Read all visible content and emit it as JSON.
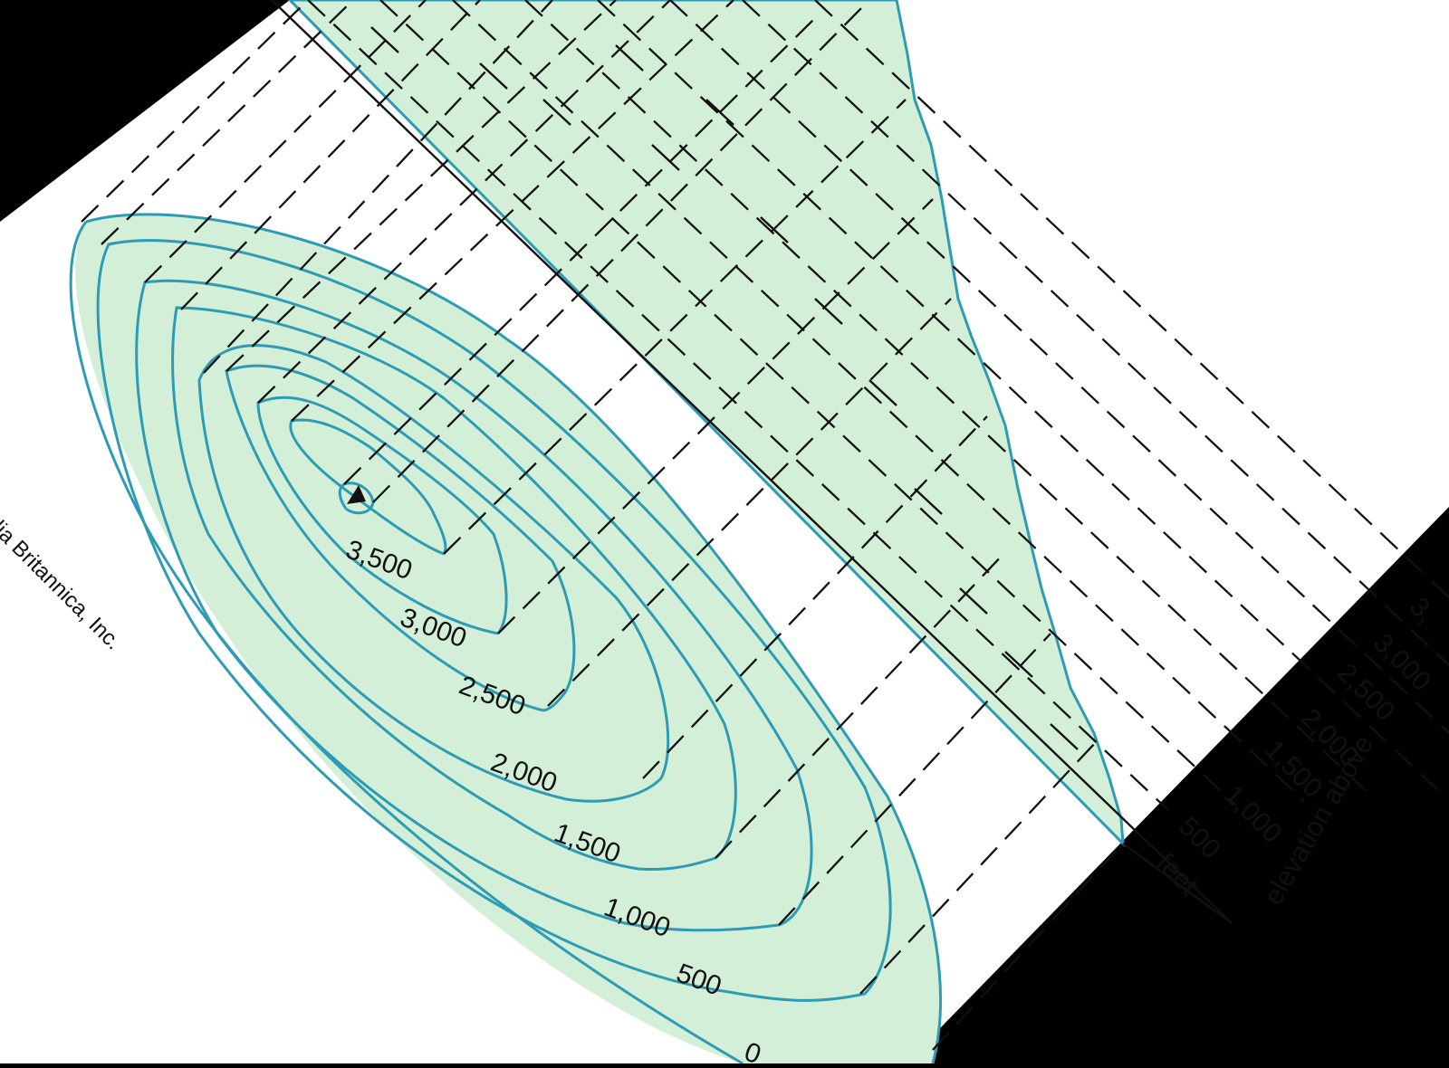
{
  "colors": {
    "background": "#000000",
    "paper": "#ffffff",
    "land_fill": "#d3efd8",
    "contour_line": "#2e9bb5",
    "line": "#111111"
  },
  "credit": "edia Britannica, Inc.",
  "map": {
    "summit_marker": "peak-triangle-icon",
    "contour_labels": [
      "3,500",
      "3,000",
      "2,500",
      "2,000",
      "1,500",
      "1,000",
      "500",
      "0"
    ]
  },
  "profile": {
    "unit_label": "feet",
    "axis_title": "elevation above",
    "elevation_labels": [
      "500",
      "1,000",
      "1,500",
      "2,000",
      "2,500",
      "3,000",
      "3,"
    ]
  }
}
